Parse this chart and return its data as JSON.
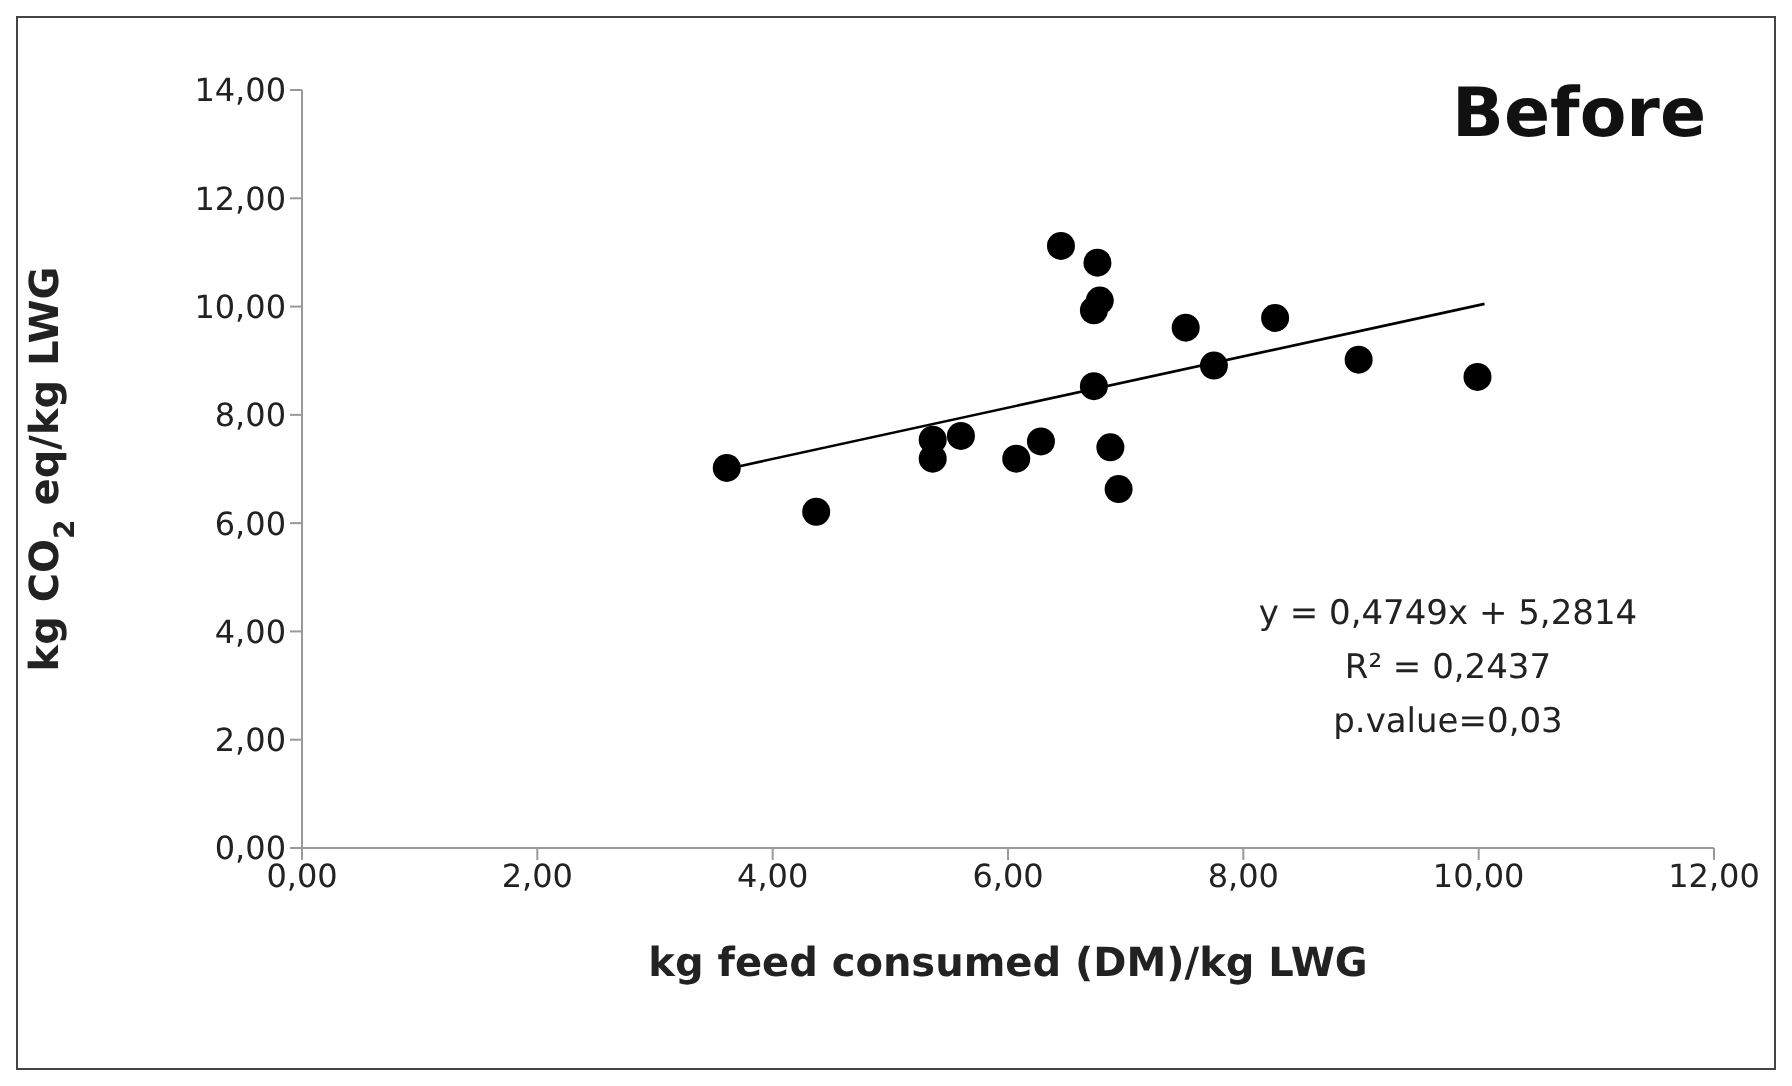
{
  "chart_data": {
    "type": "scatter",
    "title": "Before",
    "xlabel": "kg feed consumed  (DM)/kg LWG",
    "ylabel": "kg CO$_{2}$ eq/kg LWG",
    "annotations": [
      "y = 0,4749x + 5,2814",
      "R² = 0,2437",
      "p.value=0,03"
    ],
    "xlim": [
      0,
      12
    ],
    "ylim": [
      0,
      14
    ],
    "xticks": [
      {
        "value": 0,
        "label": "0,00"
      },
      {
        "value": 2,
        "label": "2,00"
      },
      {
        "value": 4,
        "label": "4,00"
      },
      {
        "value": 6,
        "label": "6,00"
      },
      {
        "value": 8,
        "label": "8,00"
      },
      {
        "value": 10,
        "label": "10,00"
      },
      {
        "value": 12,
        "label": "12,00"
      }
    ],
    "yticks": [
      {
        "value": 0,
        "label": "0,00"
      },
      {
        "value": 2,
        "label": "2,00"
      },
      {
        "value": 4,
        "label": "4,00"
      },
      {
        "value": 6,
        "label": "6,00"
      },
      {
        "value": 8,
        "label": "8,00"
      },
      {
        "value": 10,
        "label": "10,00"
      },
      {
        "value": 12,
        "label": "12,00"
      },
      {
        "value": 14,
        "label": "14,00"
      }
    ],
    "grid": false,
    "marker": "circle",
    "legend": false,
    "series": [
      {
        "color": "#000000",
        "x": [
          3.61,
          4.37,
          5.36,
          5.36,
          5.6,
          6.07,
          6.28,
          6.45,
          6.76,
          6.73,
          6.78,
          6.73,
          6.87,
          6.94,
          7.51,
          7.75,
          8.27,
          8.98,
          9.99
        ],
        "values": [
          7.02,
          6.21,
          7.54,
          7.19,
          7.61,
          7.19,
          7.51,
          11.12,
          10.81,
          9.93,
          10.11,
          8.53,
          7.4,
          6.63,
          9.61,
          8.91,
          9.79,
          9.02,
          8.7
        ]
      },
      {
        "type": "line",
        "color": "#000000",
        "line_style": "solid",
        "marker": "none",
        "x": [
          3.65,
          10.05
        ],
        "values": [
          7.02,
          10.05
        ]
      }
    ]
  }
}
